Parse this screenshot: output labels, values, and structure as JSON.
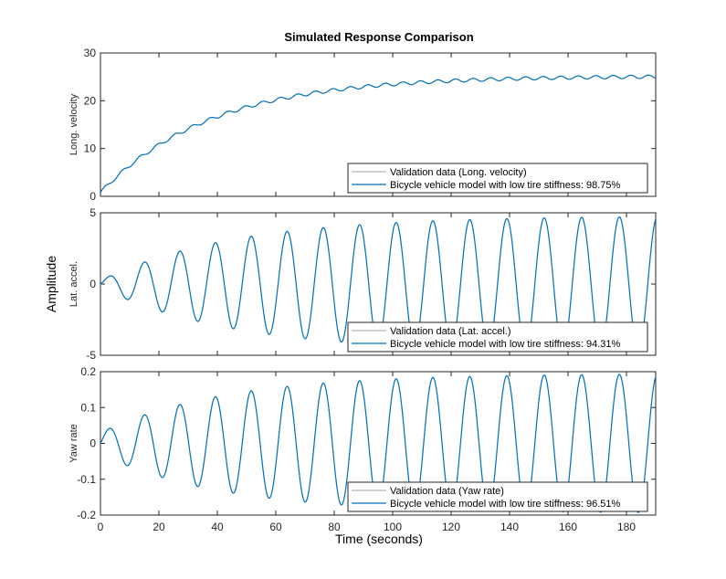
{
  "figure": {
    "title": "Simulated Response Comparison",
    "ylabel": "Amplitude",
    "xlabel": "Time (seconds)"
  },
  "chart_data": [
    {
      "type": "line",
      "ylabel": "Long. velocity",
      "xlim": [
        0,
        190
      ],
      "ylim": [
        0,
        30
      ],
      "xticks": [
        0,
        20,
        40,
        60,
        80,
        100,
        120,
        140,
        160,
        180
      ],
      "yticks": [
        0,
        10,
        20,
        30
      ],
      "ytick_labels": [
        "0",
        "10",
        "20",
        "30"
      ],
      "model": {
        "kind": "rise",
        "final": 25.2,
        "tau": 38,
        "start": 0.8,
        "ripple": 0.35,
        "period": 6
      },
      "legend": {
        "location": "bottom-right",
        "entries": [
          {
            "label": "Validation data (Long. velocity)",
            "color": "#b3b3b3"
          },
          {
            "label": "Bicycle vehicle model with low tire stiffness: 98.75%",
            "color": "#0072bd"
          }
        ]
      },
      "series": [
        {
          "name": "Validation data (Long. velocity)",
          "color": "#b3b3b3"
        },
        {
          "name": "Bicycle vehicle model with low tire stiffness: 98.75%",
          "color": "#0072bd"
        }
      ]
    },
    {
      "type": "line",
      "ylabel": "Lat. accel.",
      "xlim": [
        0,
        190
      ],
      "ylim": [
        -5,
        5
      ],
      "yticks": [
        -5,
        0,
        5
      ],
      "ytick_labels": [
        "-5",
        "0",
        "5"
      ],
      "model": {
        "kind": "chirp",
        "amp_start": 0.25,
        "amp_end": 4.8,
        "tau": 45,
        "start_phase_t": 2,
        "period_start": 12,
        "period_end": 13,
        "sign": 1
      },
      "legend": {
        "location": "bottom-right",
        "entries": [
          {
            "label": "Validation data (Lat. accel.)",
            "color": "#b3b3b3"
          },
          {
            "label": "Bicycle vehicle model with low tire stiffness: 94.31%",
            "color": "#0072bd"
          }
        ]
      },
      "series": [
        {
          "name": "Validation data (Lat. accel.)",
          "color": "#b3b3b3"
        },
        {
          "name": "Bicycle vehicle model with low tire stiffness: 94.31%",
          "color": "#0072bd"
        }
      ]
    },
    {
      "type": "line",
      "ylabel": "Yaw rate",
      "xlim": [
        0,
        190
      ],
      "ylim": [
        -0.2,
        0.2
      ],
      "xticks": [
        0,
        20,
        40,
        60,
        80,
        100,
        120,
        140,
        160,
        180
      ],
      "xtick_labels": [
        "0",
        "20",
        "40",
        "60",
        "80",
        "100",
        "120",
        "140",
        "160",
        "180"
      ],
      "yticks": [
        -0.2,
        -0.1,
        0,
        0.1,
        0.2
      ],
      "ytick_labels": [
        "-0.2",
        "-0.1",
        "0",
        "0.1",
        "0.2"
      ],
      "model": {
        "kind": "chirp",
        "amp_start": 0.03,
        "amp_end": 0.195,
        "tau": 42,
        "start_phase_t": 0,
        "period_start": 12,
        "period_end": 13,
        "sign": 1
      },
      "legend": {
        "location": "bottom-right",
        "entries": [
          {
            "label": "Validation data (Yaw rate)",
            "color": "#b3b3b3"
          },
          {
            "label": "Bicycle vehicle model with low tire stiffness: 96.51%",
            "color": "#0072bd"
          }
        ]
      },
      "series": [
        {
          "name": "Validation data (Yaw rate)",
          "color": "#b3b3b3"
        },
        {
          "name": "Bicycle vehicle model with low tire stiffness: 96.51%",
          "color": "#0072bd"
        }
      ]
    }
  ]
}
